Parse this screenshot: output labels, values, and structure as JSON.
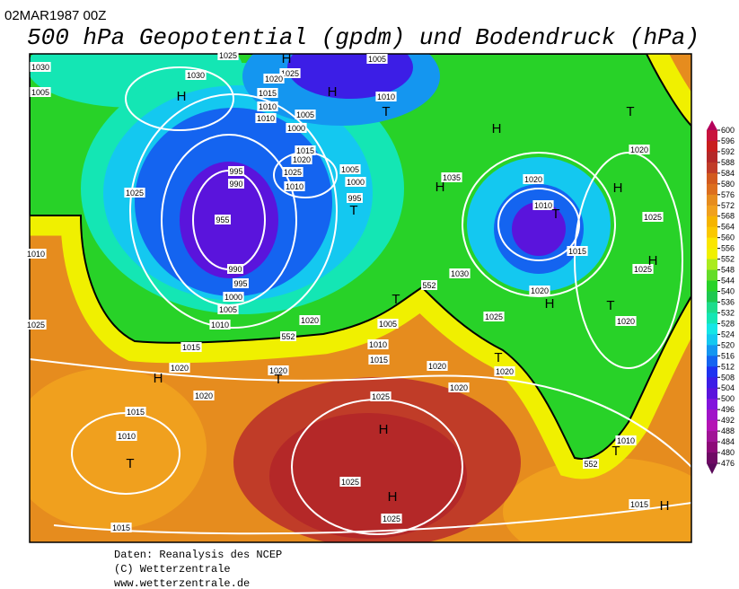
{
  "header": {
    "date": "02MAR1987 00Z",
    "title": "500 hPa Geopotential (gpdm) und Bodendruck (hPa)"
  },
  "colorbar": {
    "levels": [
      600,
      596,
      592,
      588,
      584,
      580,
      576,
      572,
      568,
      564,
      560,
      556,
      552,
      548,
      544,
      540,
      536,
      532,
      528,
      524,
      520,
      516,
      512,
      508,
      504,
      500,
      496,
      492,
      488,
      484,
      480,
      476
    ],
    "colors": [
      "#c8143c",
      "#c81e1e",
      "#b42828",
      "#c03c28",
      "#d25a1e",
      "#dc6e1e",
      "#e68c1e",
      "#f0a01e",
      "#f5b400",
      "#fac800",
      "#fae600",
      "#f0f000",
      "#aaeb1e",
      "#64dc28",
      "#28d228",
      "#1ec850",
      "#1edc8c",
      "#14e6b4",
      "#14e6e6",
      "#14c8f0",
      "#1496f0",
      "#1464f0",
      "#1e32f0",
      "#3c1ee6",
      "#5a14dc",
      "#8214dc",
      "#a014c8",
      "#b414b4",
      "#a01496",
      "#8c0a78",
      "#6e0a64"
    ]
  },
  "map": {
    "isobar_labels": [
      "1025",
      "1025",
      "1020",
      "1005",
      "1015",
      "1010",
      "1010",
      "1005",
      "1000",
      "1010",
      "1030",
      "1015",
      "1020",
      "1025",
      "1010",
      "995",
      "990",
      "1005",
      "1000",
      "995",
      "955",
      "990",
      "995",
      "1000",
      "1005",
      "1010",
      "1015",
      "1020",
      "1020",
      "1005",
      "1010",
      "1015",
      "1020",
      "1020",
      "1015",
      "1010",
      "1015",
      "1025",
      "1025",
      "1025",
      "1020",
      "1020",
      "1020",
      "1025",
      "1030",
      "1035",
      "1020",
      "1010",
      "1015",
      "1020",
      "1020",
      "1025",
      "1025",
      "1020",
      "1010",
      "1015",
      "1025",
      "1030",
      "1005",
      "1010",
      "1025"
    ],
    "contour_labels": [
      "552",
      "552",
      "552"
    ],
    "centers": [
      "H",
      "H",
      "H",
      "H",
      "H",
      "H",
      "H",
      "H",
      "H",
      "H",
      "H",
      "H",
      "T",
      "T",
      "T",
      "T",
      "T",
      "T",
      "T",
      "T",
      "T",
      "T"
    ]
  },
  "footer": {
    "lines": [
      "Daten: Reanalysis des NCEP",
      "(C) Wetterzentrale",
      "www.wetterzentrale.de"
    ]
  }
}
